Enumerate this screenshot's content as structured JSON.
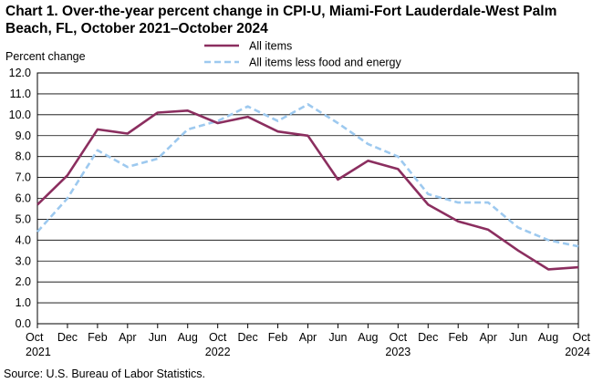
{
  "title_line1": "Chart 1. Over-the-year percent change in CPI-U, Miami-Fort Lauderdale-West Palm",
  "title_line2": "Beach, FL, October 2021–October 2024",
  "source": "Source: U.S. Bureau of Labor Statistics.",
  "colors": {
    "all_items": "#8b2e5f",
    "core": "#9dc9ef",
    "grid": "#000000"
  },
  "chart_data": {
    "type": "line",
    "title": "Chart 1. Over-the-year percent change in CPI-U, Miami-Fort Lauderdale-West Palm Beach, FL, October 2021–October 2024",
    "ylabel": "Percent change",
    "xlabel": "",
    "ylim": [
      0,
      12
    ],
    "ytick_step": 1,
    "yticks": [
      "0.0",
      "1.0",
      "2.0",
      "3.0",
      "4.0",
      "5.0",
      "6.0",
      "7.0",
      "8.0",
      "9.0",
      "10.0",
      "11.0",
      "12.0"
    ],
    "xticks": [
      {
        "month": "Oct",
        "year": "2021"
      },
      {
        "month": "Dec",
        "year": ""
      },
      {
        "month": "Feb",
        "year": ""
      },
      {
        "month": "Apr",
        "year": ""
      },
      {
        "month": "Jun",
        "year": ""
      },
      {
        "month": "Aug",
        "year": ""
      },
      {
        "month": "Oct",
        "year": "2022"
      },
      {
        "month": "Dec",
        "year": ""
      },
      {
        "month": "Feb",
        "year": ""
      },
      {
        "month": "Apr",
        "year": ""
      },
      {
        "month": "Jun",
        "year": ""
      },
      {
        "month": "Aug",
        "year": ""
      },
      {
        "month": "Oct",
        "year": "2023"
      },
      {
        "month": "Dec",
        "year": ""
      },
      {
        "month": "Feb",
        "year": ""
      },
      {
        "month": "Apr",
        "year": ""
      },
      {
        "month": "Jun",
        "year": ""
      },
      {
        "month": "Aug",
        "year": ""
      },
      {
        "month": "Oct",
        "year": "2024"
      }
    ],
    "grid": true,
    "legend_position": "top",
    "series": [
      {
        "name": "All items",
        "style": "solid",
        "values": [
          5.7,
          7.1,
          9.3,
          9.1,
          10.1,
          10.2,
          9.6,
          9.9,
          9.2,
          9.0,
          6.9,
          7.8,
          7.4,
          5.7,
          4.9,
          4.5,
          3.5,
          2.6,
          2.7
        ]
      },
      {
        "name": "All items less food and energy",
        "style": "dashed",
        "values": [
          4.4,
          6.0,
          8.3,
          7.5,
          7.9,
          9.3,
          9.7,
          10.4,
          9.7,
          10.5,
          9.6,
          8.6,
          8.0,
          6.2,
          5.8,
          5.8,
          4.6,
          4.0,
          3.7
        ]
      }
    ]
  }
}
